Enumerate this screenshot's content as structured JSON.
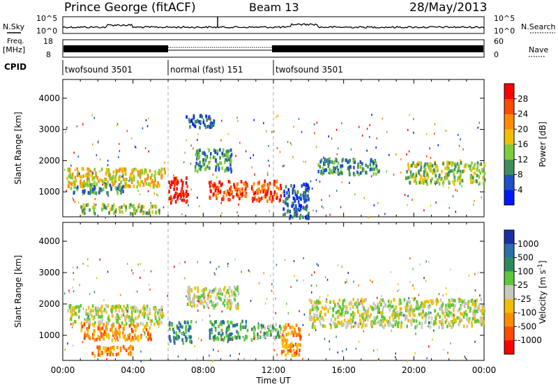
{
  "header": {
    "station": "Prince George (fitACF)",
    "beam": "Beam 13",
    "date": "28/May/2013"
  },
  "panel_labels": {
    "nsky": "N.Sky",
    "freq_line1": "Freq.",
    "freq_line2": "[MHz]",
    "cpid": "CPID",
    "nsearch": "N.Search",
    "nave": "Nave"
  },
  "noise_ticks": {
    "left_top": "10^5",
    "left_bottom": "10^0",
    "right_top": "10^5",
    "right_bottom": "10^0"
  },
  "freq_ticks": {
    "left_top": "18",
    "left_bottom": "8",
    "right_top": "60",
    "right_bottom": "0"
  },
  "cpid_segments": [
    {
      "name": "twofsound 3501",
      "start_hour": 0,
      "end_hour": 6
    },
    {
      "name": "normal (fast) 151",
      "start_hour": 6,
      "end_hour": 12
    },
    {
      "name": "twofsound 3501",
      "start_hour": 12,
      "end_hour": 24
    }
  ],
  "chart_data": [
    {
      "type": "heatmap",
      "panel": "power",
      "ylabel": "Slant Range [km]",
      "xlabel": "Time UT",
      "xlim_hours": [
        0,
        24
      ],
      "ylim_km": [
        200,
        4600
      ],
      "y_ticks": [
        "1000",
        "2000",
        "3000",
        "4000"
      ],
      "x_ticks": [
        "00:00",
        "04:00",
        "08:00",
        "12:00",
        "16:00",
        "20:00",
        "00:00"
      ],
      "colorbar": {
        "label": "Power [dB]",
        "tick_labels": [
          "4",
          "8",
          "12",
          "16",
          "20",
          "24",
          "28"
        ],
        "colors": [
          "#0018ff",
          "#1e50c8",
          "#3f8f5a",
          "#7fcc3a",
          "#f0c000",
          "#ff8c00",
          "#ff4a00",
          "#ff0000"
        ]
      },
      "regions": [
        {
          "t0": 0.2,
          "t1": 5.8,
          "r0": 1200,
          "r1": 1800,
          "level": 4
        },
        {
          "t0": 0.4,
          "t1": 3.5,
          "r0": 1000,
          "r1": 1300,
          "level": 2
        },
        {
          "t0": 1.0,
          "t1": 5.5,
          "r0": 350,
          "r1": 650,
          "level": 3
        },
        {
          "t0": 6.0,
          "t1": 7.1,
          "r0": 700,
          "r1": 1500,
          "level": 7
        },
        {
          "t0": 8.3,
          "t1": 10.5,
          "r0": 800,
          "r1": 1400,
          "level": 6
        },
        {
          "t0": 10.7,
          "t1": 12.4,
          "r0": 750,
          "r1": 1400,
          "level": 6
        },
        {
          "t0": 7.5,
          "t1": 9.6,
          "r0": 1700,
          "r1": 2400,
          "level": 2
        },
        {
          "t0": 7.0,
          "t1": 8.6,
          "r0": 3100,
          "r1": 3500,
          "level": 1
        },
        {
          "t0": 12.5,
          "t1": 14.0,
          "r0": 200,
          "r1": 1300,
          "level": 1
        },
        {
          "t0": 14.5,
          "t1": 18.0,
          "r0": 1600,
          "r1": 2100,
          "level": 2
        },
        {
          "t0": 19.5,
          "t1": 24.0,
          "r0": 1300,
          "r1": 2000,
          "level": 3
        }
      ]
    },
    {
      "type": "heatmap",
      "panel": "velocity",
      "ylabel": "Slant Range [km]",
      "xlabel": "Time UT",
      "xlim_hours": [
        0,
        24
      ],
      "ylim_km": [
        200,
        4600
      ],
      "y_ticks": [
        "1000",
        "2000",
        "3000",
        "4000"
      ],
      "x_ticks": [
        "00:00",
        "04:00",
        "08:00",
        "12:00",
        "16:00",
        "20:00",
        "00:00"
      ],
      "colorbar": {
        "label": "Velocity [m s^-1]",
        "tick_labels": [
          "1000",
          "500",
          "100",
          "25",
          "-25",
          "-100",
          "-500",
          "-1000"
        ],
        "colors": [
          "#1a2ea8",
          "#2a6fa8",
          "#2f8a5a",
          "#5cc83a",
          "#c8c8c0",
          "#f0c000",
          "#ff8c00",
          "#ff4a00",
          "#ff0000"
        ]
      },
      "regions": [
        {
          "t0": 0.2,
          "t1": 5.8,
          "r0": 1400,
          "r1": 2000,
          "level": 4
        },
        {
          "t0": 1.0,
          "t1": 5.0,
          "r0": 900,
          "r1": 1400,
          "level": 6
        },
        {
          "t0": 1.5,
          "t1": 4.0,
          "r0": 400,
          "r1": 700,
          "level": 6
        },
        {
          "t0": 6.0,
          "t1": 7.3,
          "r0": 800,
          "r1": 1500,
          "level": 2
        },
        {
          "t0": 8.3,
          "t1": 10.5,
          "r0": 900,
          "r1": 1500,
          "level": 2
        },
        {
          "t0": 10.7,
          "t1": 12.4,
          "r0": 900,
          "r1": 1400,
          "level": 3
        },
        {
          "t0": 12.4,
          "t1": 13.6,
          "r0": 400,
          "r1": 1400,
          "level": 6
        },
        {
          "t0": 7.0,
          "t1": 10.0,
          "r0": 1900,
          "r1": 2600,
          "level": 4
        },
        {
          "t0": 14.0,
          "t1": 24.0,
          "r0": 1300,
          "r1": 2200,
          "level": 4
        }
      ]
    }
  ]
}
